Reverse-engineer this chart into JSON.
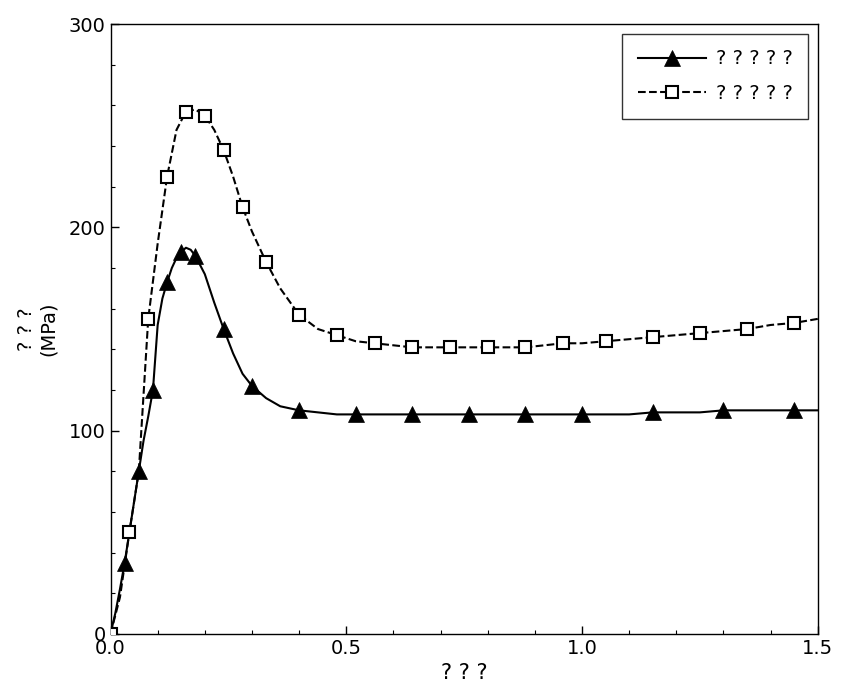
{
  "title": "",
  "xlabel": "? ? ?",
  "ylabel_line1": "? ? ?",
  "ylabel_line2": "(MPa)",
  "xlim": [
    0.0,
    1.5
  ],
  "ylim": [
    0,
    300
  ],
  "yticks": [
    0,
    100,
    200,
    300
  ],
  "xticks": [
    0.0,
    0.5,
    1.0,
    1.5
  ],
  "legend_labels": [
    "? ? ? ? ?",
    "? ? ? ? ?"
  ],
  "background_color": "#ffffff",
  "line1_color": "#000000",
  "line2_color": "#000000",
  "solid_x": [
    0.0,
    0.01,
    0.02,
    0.03,
    0.04,
    0.05,
    0.06,
    0.07,
    0.08,
    0.09,
    0.1,
    0.11,
    0.12,
    0.13,
    0.14,
    0.15,
    0.16,
    0.17,
    0.18,
    0.2,
    0.22,
    0.24,
    0.26,
    0.28,
    0.3,
    0.33,
    0.36,
    0.4,
    0.44,
    0.48,
    0.52,
    0.56,
    0.6,
    0.64,
    0.68,
    0.72,
    0.76,
    0.8,
    0.84,
    0.88,
    0.92,
    0.96,
    1.0,
    1.05,
    1.1,
    1.15,
    1.2,
    1.25,
    1.3,
    1.35,
    1.4,
    1.45,
    1.5
  ],
  "solid_y": [
    0,
    10,
    22,
    35,
    50,
    65,
    80,
    95,
    107,
    120,
    152,
    165,
    173,
    180,
    185,
    188,
    190,
    189,
    186,
    177,
    163,
    150,
    138,
    128,
    122,
    116,
    112,
    110,
    109,
    108,
    108,
    108,
    108,
    108,
    108,
    108,
    108,
    108,
    108,
    108,
    108,
    108,
    108,
    108,
    108,
    109,
    109,
    109,
    110,
    110,
    110,
    110,
    110
  ],
  "dashed_x": [
    0.0,
    0.02,
    0.04,
    0.06,
    0.08,
    0.1,
    0.12,
    0.14,
    0.16,
    0.18,
    0.2,
    0.22,
    0.24,
    0.26,
    0.28,
    0.3,
    0.33,
    0.36,
    0.4,
    0.44,
    0.48,
    0.52,
    0.56,
    0.6,
    0.64,
    0.68,
    0.72,
    0.76,
    0.8,
    0.84,
    0.88,
    0.92,
    0.96,
    1.0,
    1.05,
    1.1,
    1.15,
    1.2,
    1.25,
    1.3,
    1.35,
    1.4,
    1.45,
    1.5
  ],
  "dashed_y": [
    0,
    18,
    50,
    80,
    155,
    192,
    225,
    248,
    257,
    258,
    255,
    248,
    238,
    225,
    210,
    198,
    183,
    170,
    157,
    150,
    147,
    144,
    143,
    142,
    141,
    141,
    141,
    141,
    141,
    141,
    141,
    142,
    143,
    143,
    144,
    145,
    146,
    147,
    148,
    149,
    150,
    152,
    153,
    155
  ],
  "solid_marker_every": 3,
  "dashed_marker_every": 2
}
